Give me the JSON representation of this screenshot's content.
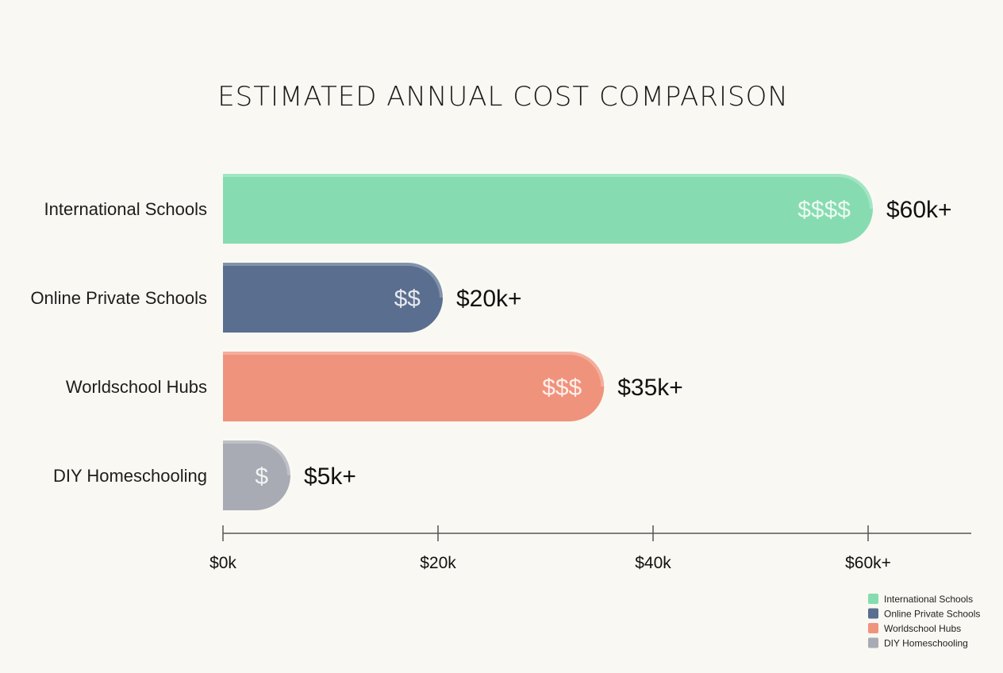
{
  "chart_data": {
    "type": "bar",
    "orientation": "horizontal",
    "title": "ESTIMATED ANNUAL COST COMPARISON",
    "categories": [
      "International Schools",
      "Online Private Schools",
      "Worldschool Hubs",
      "DIY Homeschooling"
    ],
    "values": [
      60,
      20,
      35,
      5
    ],
    "value_unit": "$k",
    "data_labels": [
      "$60k+",
      "$20k+",
      "$35k+",
      "$5k+"
    ],
    "cost_symbols": [
      "$$$$",
      "$$",
      "$$$",
      "$"
    ],
    "colors": [
      "#86dcb0",
      "#5a6e8f",
      "#f0937c",
      "#a8abb3"
    ],
    "xticks": [
      0,
      20,
      40,
      60
    ],
    "xtick_labels": [
      "$0k",
      "$20k",
      "$40k",
      "$60k+"
    ],
    "xlim": [
      0,
      69.7
    ],
    "xlabel": "",
    "ylabel": "",
    "grid": false,
    "legend": {
      "position": "bottom-right",
      "entries": [
        "International Schools",
        "Online Private Schools",
        "Worldschool Hubs",
        "DIY Homeschooling"
      ]
    }
  }
}
